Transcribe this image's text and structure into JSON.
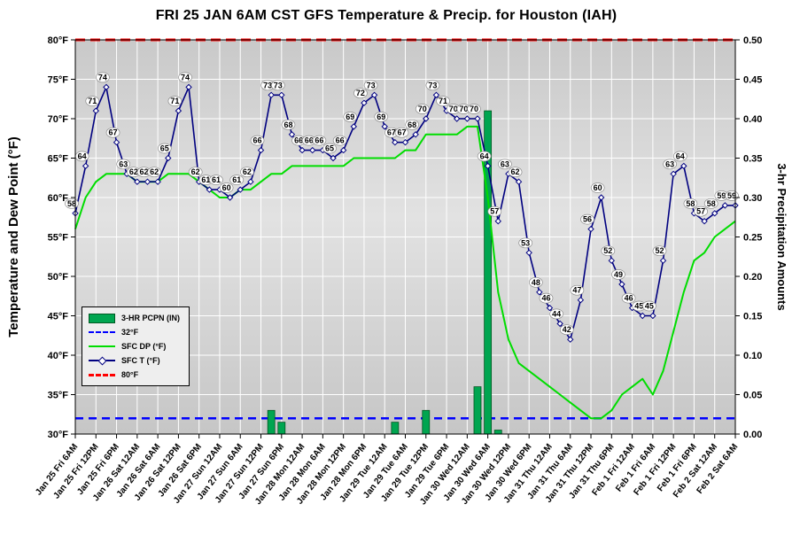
{
  "page": {
    "title": "FRI 25 JAN 6AM CST GFS Temperature & Precip. for Houston (IAH)"
  },
  "colors": {
    "temp_line": "#000080",
    "dewpoint_line": "#00DD00",
    "precip_bar": "#00A550",
    "freezing_line": "#0000FF",
    "eighty_line": "#FF0000",
    "plot_bg_top": "#c9c9c9",
    "plot_bg_mid": "#e2e2e2",
    "plot_bg_bottom": "#c6c6c6",
    "gridline": "#FFFFFF"
  },
  "chart_data": {
    "type": "line",
    "title": "FRI 25 JAN 6AM CST GFS Temperature & Precip. for Houston (IAH)",
    "ylabel_left": "Temperature and Dew Point (°F)",
    "ylabel_right": "3-hr Precipitation Amounts",
    "ylim_left": [
      30,
      80
    ],
    "ylim_right": [
      0,
      0.5
    ],
    "grid": true,
    "legend_position": "inside-left",
    "y_ticks_left": [
      "80°F",
      "75°F",
      "70°F",
      "65°F",
      "60°F",
      "55°F",
      "50°F",
      "45°F",
      "40°F",
      "35°F",
      "30°F"
    ],
    "y_ticks_right": [
      "0.50",
      "0.45",
      "0.40",
      "0.35",
      "0.30",
      "0.25",
      "0.20",
      "0.15",
      "0.10",
      "0.05",
      "0.00"
    ],
    "points_per_xtick": 2,
    "interval_hours": 3,
    "x_tick_labels": [
      "Jan 25 Fri 6AM",
      "Jan 25 Fri 12PM",
      "Jan 25 Fri 6PM",
      "Jan 26 Sat 12AM",
      "Jan 26 Sat 6AM",
      "Jan 26 Sat 12PM",
      "Jan 26 Sat 6PM",
      "Jan 27 Sun 12AM",
      "Jan 27 Sun 6AM",
      "Jan 27 Sun 12PM",
      "Jan 27 Sun 6PM",
      "Jan 28 Mon 12AM",
      "Jan 28 Mon 6AM",
      "Jan 28 Mon 12PM",
      "Jan 28 Mon 6PM",
      "Jan 29 Tue 12AM",
      "Jan 29 Tue 6AM",
      "Jan 29 Tue 12PM",
      "Jan 29 Tue 6PM",
      "Jan 30 Wed 12AM",
      "Jan 30 Wed 6AM",
      "Jan 30 Wed 12PM",
      "Jan 30 Wed 6PM",
      "Jan 31 Thu 12AM",
      "Jan 31 Thu 6AM",
      "Jan 31 Thu 12PM",
      "Jan 31 Thu 6PM",
      "Feb 1 Fri 12AM",
      "Feb 1 Fri 6AM",
      "Feb 1 Fri 12PM",
      "Feb 1 Fri 6PM",
      "Feb 2 Sat 12AM",
      "Feb 2 Sat 6AM"
    ],
    "series": [
      {
        "id": "precip",
        "name": "3-HR PCPN (IN)",
        "type": "bar",
        "axis": "right",
        "color": "#00A550",
        "values": [
          0,
          0,
          0,
          0,
          0,
          0,
          0,
          0,
          0,
          0,
          0,
          0,
          0,
          0,
          0,
          0,
          0,
          0,
          0,
          0.03,
          0.015,
          0,
          0,
          0,
          0,
          0,
          0,
          0,
          0,
          0,
          0,
          0.015,
          0,
          0,
          0.03,
          0,
          0,
          0,
          0,
          0.06,
          0.41,
          0.005,
          0,
          0,
          0,
          0,
          0,
          0,
          0,
          0,
          0,
          0,
          0,
          0,
          0,
          0,
          0,
          0,
          0,
          0,
          0,
          0,
          0,
          0,
          0
        ]
      },
      {
        "id": "sfc_dp",
        "name": "SFC DP (°F)",
        "type": "line",
        "axis": "left",
        "color": "#00DD00",
        "values": [
          56,
          60,
          62,
          63,
          63,
          63,
          62,
          62,
          62,
          63,
          63,
          63,
          62,
          61,
          60,
          60,
          61,
          61,
          62,
          63,
          63,
          64,
          64,
          64,
          64,
          64,
          64,
          65,
          65,
          65,
          65,
          65,
          66,
          66,
          68,
          68,
          68,
          68,
          69,
          69,
          60,
          48,
          42,
          39,
          38,
          37,
          36,
          35,
          34,
          33,
          32,
          32,
          33,
          35,
          36,
          37,
          35,
          38,
          43,
          48,
          52,
          53,
          55,
          56,
          57
        ]
      },
      {
        "id": "sfc_t",
        "name": "SFC T (°F)",
        "type": "line",
        "axis": "left",
        "color": "#000080",
        "marker": "diamond",
        "data_labels": true,
        "values": [
          58,
          64,
          71,
          74,
          67,
          63,
          62,
          62,
          62,
          65,
          71,
          74,
          62,
          61,
          61,
          60,
          61,
          62,
          66,
          73,
          73,
          68,
          66,
          66,
          66,
          65,
          66,
          69,
          72,
          73,
          69,
          67,
          67,
          68,
          70,
          73,
          71,
          70,
          70,
          70,
          64,
          57,
          63,
          62,
          53,
          48,
          46,
          44,
          42,
          47,
          56,
          60,
          52,
          49,
          46,
          45,
          45,
          52,
          63,
          64,
          58,
          57,
          58,
          59,
          59
        ]
      }
    ],
    "reference_lines": [
      {
        "id": "freezing",
        "label": "32°F",
        "axis": "left",
        "value": 32,
        "color": "#0000FF",
        "style": "dashed"
      },
      {
        "id": "eighty",
        "label": "80°F",
        "axis": "left",
        "value": 80,
        "color": "#FF0000",
        "style": "dashed"
      }
    ],
    "legend": {
      "items": [
        {
          "label": "3-HR PCPN (IN)",
          "swatch": "bar-green"
        },
        {
          "label": "32°F",
          "swatch": "dash-blue"
        },
        {
          "label": "SFC DP (°F)",
          "swatch": "line-green"
        },
        {
          "label": "SFC T (°F)",
          "swatch": "line-navy-diamond"
        },
        {
          "label": "80°F",
          "swatch": "dash-red"
        }
      ]
    }
  }
}
